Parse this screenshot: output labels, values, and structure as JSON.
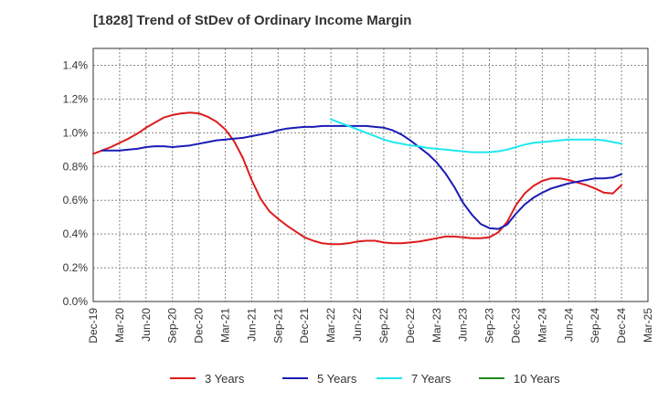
{
  "chart_data": {
    "type": "line",
    "title": "[1828]  Trend of StDev of Ordinary Income Margin",
    "xlabel": "",
    "ylabel": "",
    "ylim": [
      0,
      1.5
    ],
    "y_ticks": [
      {
        "value": 0.0,
        "label": "0.0%"
      },
      {
        "value": 0.2,
        "label": "0.2%"
      },
      {
        "value": 0.4,
        "label": "0.4%"
      },
      {
        "value": 0.6,
        "label": "0.6%"
      },
      {
        "value": 0.8,
        "label": "0.8%"
      },
      {
        "value": 1.0,
        "label": "1.0%"
      },
      {
        "value": 1.2,
        "label": "1.2%"
      },
      {
        "value": 1.4,
        "label": "1.4%"
      }
    ],
    "x_ticks": [
      "Dec-19",
      "Mar-20",
      "Jun-20",
      "Sep-20",
      "Dec-20",
      "Mar-21",
      "Jun-21",
      "Sep-21",
      "Dec-21",
      "Mar-22",
      "Jun-22",
      "Sep-22",
      "Dec-22",
      "Mar-23",
      "Jun-23",
      "Sep-23",
      "Dec-23",
      "Mar-24",
      "Jun-24",
      "Sep-24",
      "Dec-24",
      "Mar-25"
    ],
    "grid": true,
    "legend_position": "bottom",
    "series": [
      {
        "name": "3 Years",
        "color": "#dd1c1c",
        "points": [
          [
            "2019-12",
            0.875
          ],
          [
            "2020-01",
            0.895
          ],
          [
            "2020-02",
            0.915
          ],
          [
            "2020-03",
            0.94
          ],
          [
            "2020-04",
            0.965
          ],
          [
            "2020-05",
            0.995
          ],
          [
            "2020-06",
            1.03
          ],
          [
            "2020-07",
            1.06
          ],
          [
            "2020-08",
            1.09
          ],
          [
            "2020-09",
            1.105
          ],
          [
            "2020-10",
            1.115
          ],
          [
            "2020-11",
            1.12
          ],
          [
            "2020-12",
            1.115
          ],
          [
            "2021-01",
            1.095
          ],
          [
            "2021-02",
            1.065
          ],
          [
            "2021-03",
            1.02
          ],
          [
            "2021-04",
            0.95
          ],
          [
            "2021-05",
            0.85
          ],
          [
            "2021-06",
            0.72
          ],
          [
            "2021-07",
            0.61
          ],
          [
            "2021-08",
            0.535
          ],
          [
            "2021-09",
            0.49
          ],
          [
            "2021-10",
            0.45
          ],
          [
            "2021-11",
            0.415
          ],
          [
            "2021-12",
            0.38
          ],
          [
            "2022-01",
            0.36
          ],
          [
            "2022-02",
            0.345
          ],
          [
            "2022-03",
            0.34
          ],
          [
            "2022-04",
            0.34
          ],
          [
            "2022-05",
            0.345
          ],
          [
            "2022-06",
            0.355
          ],
          [
            "2022-07",
            0.36
          ],
          [
            "2022-08",
            0.36
          ],
          [
            "2022-09",
            0.35
          ],
          [
            "2022-10",
            0.345
          ],
          [
            "2022-11",
            0.345
          ],
          [
            "2022-12",
            0.35
          ],
          [
            "2023-01",
            0.355
          ],
          [
            "2023-02",
            0.365
          ],
          [
            "2023-03",
            0.375
          ],
          [
            "2023-04",
            0.385
          ],
          [
            "2023-05",
            0.385
          ],
          [
            "2023-06",
            0.38
          ],
          [
            "2023-07",
            0.375
          ],
          [
            "2023-08",
            0.375
          ],
          [
            "2023-09",
            0.38
          ],
          [
            "2023-10",
            0.41
          ],
          [
            "2023-11",
            0.47
          ],
          [
            "2023-12",
            0.57
          ],
          [
            "2024-01",
            0.64
          ],
          [
            "2024-02",
            0.685
          ],
          [
            "2024-03",
            0.715
          ],
          [
            "2024-04",
            0.73
          ],
          [
            "2024-05",
            0.73
          ],
          [
            "2024-06",
            0.72
          ],
          [
            "2024-07",
            0.705
          ],
          [
            "2024-08",
            0.69
          ],
          [
            "2024-09",
            0.67
          ],
          [
            "2024-10",
            0.645
          ],
          [
            "2024-11",
            0.64
          ],
          [
            "2024-12",
            0.69
          ]
        ]
      },
      {
        "name": "5 Years",
        "color": "#1b1bb5",
        "points": [
          [
            "2020-01",
            0.895
          ],
          [
            "2020-02",
            0.895
          ],
          [
            "2020-03",
            0.895
          ],
          [
            "2020-04",
            0.9
          ],
          [
            "2020-05",
            0.905
          ],
          [
            "2020-06",
            0.915
          ],
          [
            "2020-07",
            0.92
          ],
          [
            "2020-08",
            0.92
          ],
          [
            "2020-09",
            0.915
          ],
          [
            "2020-10",
            0.92
          ],
          [
            "2020-11",
            0.925
          ],
          [
            "2020-12",
            0.935
          ],
          [
            "2021-01",
            0.945
          ],
          [
            "2021-02",
            0.955
          ],
          [
            "2021-03",
            0.96
          ],
          [
            "2021-04",
            0.965
          ],
          [
            "2021-05",
            0.97
          ],
          [
            "2021-06",
            0.98
          ],
          [
            "2021-07",
            0.99
          ],
          [
            "2021-08",
            1.0
          ],
          [
            "2021-09",
            1.015
          ],
          [
            "2021-10",
            1.025
          ],
          [
            "2021-11",
            1.03
          ],
          [
            "2021-12",
            1.035
          ],
          [
            "2022-01",
            1.035
          ],
          [
            "2022-02",
            1.04
          ],
          [
            "2022-03",
            1.04
          ],
          [
            "2022-04",
            1.04
          ],
          [
            "2022-05",
            1.04
          ],
          [
            "2022-06",
            1.04
          ],
          [
            "2022-07",
            1.04
          ],
          [
            "2022-08",
            1.035
          ],
          [
            "2022-09",
            1.03
          ],
          [
            "2022-10",
            1.015
          ],
          [
            "2022-11",
            0.99
          ],
          [
            "2022-12",
            0.955
          ],
          [
            "2023-01",
            0.915
          ],
          [
            "2023-02",
            0.875
          ],
          [
            "2023-03",
            0.825
          ],
          [
            "2023-04",
            0.76
          ],
          [
            "2023-05",
            0.68
          ],
          [
            "2023-06",
            0.585
          ],
          [
            "2023-07",
            0.515
          ],
          [
            "2023-08",
            0.46
          ],
          [
            "2023-09",
            0.435
          ],
          [
            "2023-10",
            0.43
          ],
          [
            "2023-11",
            0.455
          ],
          [
            "2023-12",
            0.52
          ],
          [
            "2024-01",
            0.575
          ],
          [
            "2024-02",
            0.615
          ],
          [
            "2024-03",
            0.645
          ],
          [
            "2024-04",
            0.67
          ],
          [
            "2024-05",
            0.685
          ],
          [
            "2024-06",
            0.7
          ],
          [
            "2024-07",
            0.71
          ],
          [
            "2024-08",
            0.72
          ],
          [
            "2024-09",
            0.73
          ],
          [
            "2024-10",
            0.73
          ],
          [
            "2024-11",
            0.735
          ],
          [
            "2024-12",
            0.755
          ]
        ]
      },
      {
        "name": "7 Years",
        "color": "#1ee8ee",
        "points": [
          [
            "2022-03",
            1.08
          ],
          [
            "2022-04",
            1.06
          ],
          [
            "2022-05",
            1.04
          ],
          [
            "2022-06",
            1.02
          ],
          [
            "2022-07",
            1.0
          ],
          [
            "2022-08",
            0.98
          ],
          [
            "2022-09",
            0.96
          ],
          [
            "2022-10",
            0.945
          ],
          [
            "2022-11",
            0.935
          ],
          [
            "2022-12",
            0.925
          ],
          [
            "2023-01",
            0.92
          ],
          [
            "2023-02",
            0.91
          ],
          [
            "2023-03",
            0.905
          ],
          [
            "2023-04",
            0.9
          ],
          [
            "2023-05",
            0.895
          ],
          [
            "2023-06",
            0.89
          ],
          [
            "2023-07",
            0.885
          ],
          [
            "2023-08",
            0.885
          ],
          [
            "2023-09",
            0.885
          ],
          [
            "2023-10",
            0.89
          ],
          [
            "2023-11",
            0.9
          ],
          [
            "2023-12",
            0.915
          ],
          [
            "2024-01",
            0.93
          ],
          [
            "2024-02",
            0.94
          ],
          [
            "2024-03",
            0.945
          ],
          [
            "2024-04",
            0.95
          ],
          [
            "2024-05",
            0.955
          ],
          [
            "2024-06",
            0.96
          ],
          [
            "2024-07",
            0.96
          ],
          [
            "2024-08",
            0.96
          ],
          [
            "2024-09",
            0.96
          ],
          [
            "2024-10",
            0.955
          ],
          [
            "2024-11",
            0.945
          ],
          [
            "2024-12",
            0.935
          ]
        ]
      },
      {
        "name": "10 Years",
        "color": "#1f8a1f",
        "points": []
      }
    ]
  }
}
